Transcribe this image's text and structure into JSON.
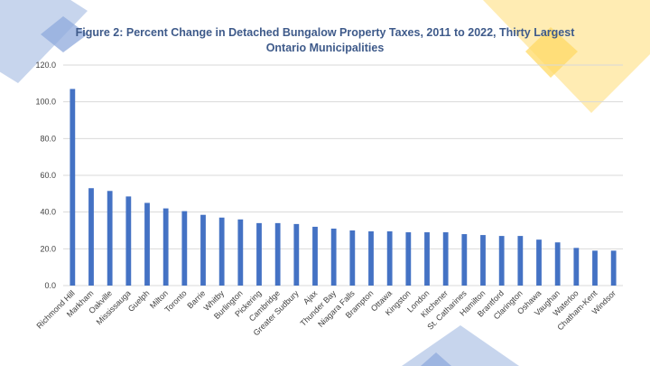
{
  "title": {
    "line1": "Figure 2: Percent Change in Detached Bungalow Property Taxes,  2011 to 2022, Thirty Largest",
    "line2": "Ontario Municipalities"
  },
  "colors": {
    "bar": "#4472C4",
    "grid": "#d9d9d9",
    "title": "#3e5a8a",
    "deco_blue": "#8faadc",
    "deco_yellow": "#ffd966"
  },
  "chart_data": {
    "type": "bar",
    "title": "Figure 2: Percent Change in Detached Bungalow Property Taxes,  2011 to 2022, Thirty Largest Ontario Municipalities",
    "xlabel": "",
    "ylabel": "",
    "ylim": [
      0,
      120
    ],
    "yticks": [
      "0.0",
      "20.0",
      "40.0",
      "60.0",
      "80.0",
      "100.0",
      "120.0"
    ],
    "grid": true,
    "legend": "none",
    "categories": [
      "Richmond Hill",
      "Markham",
      "Oakville",
      "Mississauga",
      "Guelph",
      "Milton",
      "Toronto",
      "Barrie",
      "Whitby",
      "Burlington",
      "Pickering",
      "Cambridge",
      "Greater Sudbury",
      "Ajax",
      "Thunder Bay",
      "Niagara Falls",
      "Brampton",
      "Ottawa",
      "Kingston",
      "London",
      "Kitchener",
      "St. Catharines",
      "Hamilton",
      "Brantford",
      "Clarington",
      "Oshawa",
      "Vaughan",
      "Waterloo",
      "Chatham-Kent",
      "Windsor"
    ],
    "values": [
      107,
      53,
      51.5,
      48.5,
      45,
      42,
      40.5,
      38.5,
      37,
      36,
      34,
      34,
      33.5,
      32,
      31,
      30,
      29.5,
      29.5,
      29,
      29,
      29,
      28,
      27.5,
      27,
      27,
      25,
      23.5,
      20.5,
      19,
      19
    ]
  }
}
